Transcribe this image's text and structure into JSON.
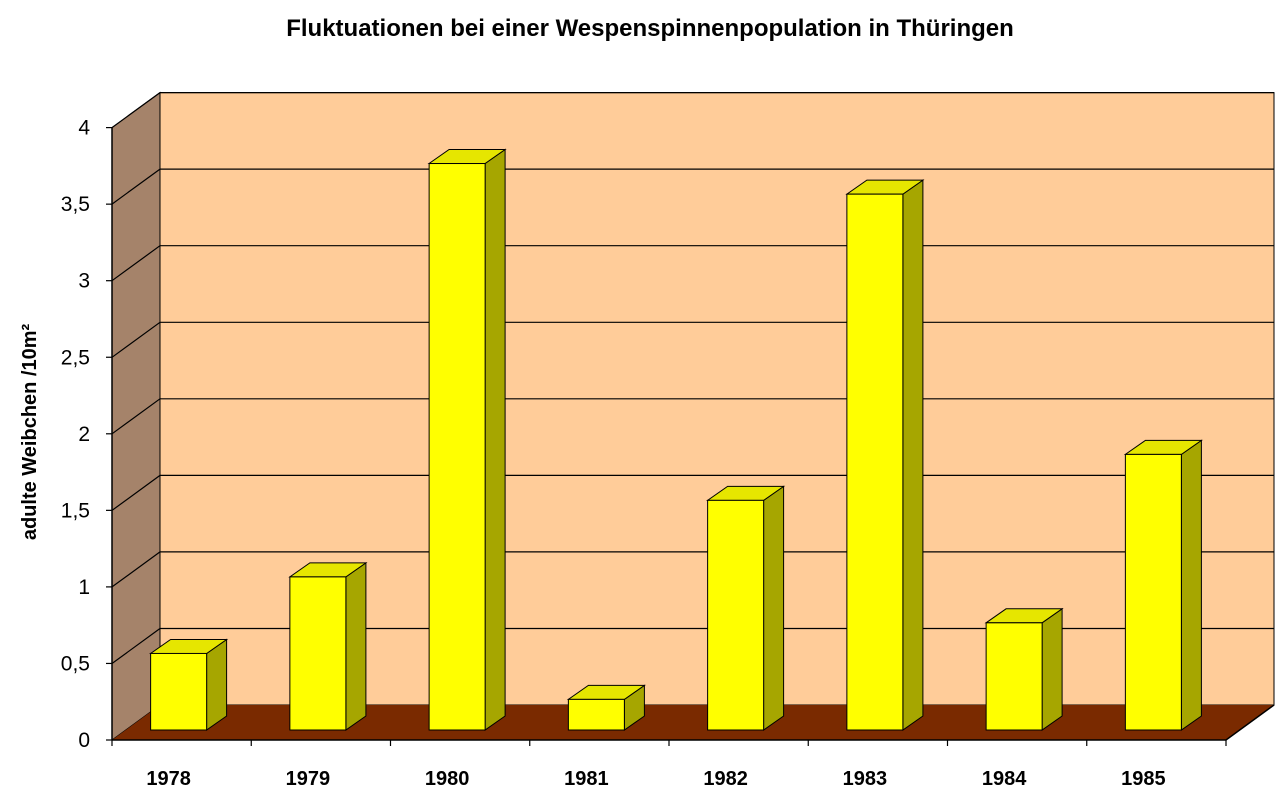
{
  "chart_data": {
    "type": "bar",
    "title": "Fluktuationen bei einer Wespenspinnenpopulation in Thüringen",
    "xlabel": "",
    "ylabel": "adulte Weibchen /10m²",
    "categories": [
      "1978",
      "1979",
      "1980",
      "1981",
      "1982",
      "1983",
      "1984",
      "1985"
    ],
    "values": [
      0.5,
      1.0,
      3.7,
      0.2,
      1.5,
      3.5,
      0.7,
      1.8
    ],
    "ylim": [
      0,
      4
    ],
    "yticks": [
      {
        "value": 0,
        "label": "0"
      },
      {
        "value": 0.5,
        "label": "0,5"
      },
      {
        "value": 1,
        "label": "1"
      },
      {
        "value": 1.5,
        "label": "1,5"
      },
      {
        "value": 2,
        "label": "2"
      },
      {
        "value": 2.5,
        "label": "2,5"
      },
      {
        "value": 3,
        "label": "3"
      },
      {
        "value": 3.5,
        "label": "3,5"
      },
      {
        "value": 4,
        "label": "4"
      }
    ],
    "grid": true,
    "style": "3d-column",
    "colors": {
      "back_wall": "#FFCC99",
      "side_wall": "#A5836A",
      "floor": "#7A2A00",
      "bar_front": "#FFFF00",
      "bar_top": "#E6E600",
      "bar_side": "#A6A600",
      "gridline": "#000000"
    }
  }
}
